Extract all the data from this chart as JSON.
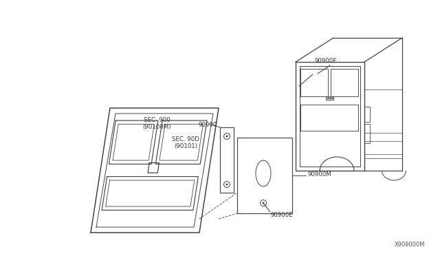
{
  "bg_color": "#ffffff",
  "line_color": "#444444",
  "text_color": "#333333",
  "labels": {
    "sec900_90100m": "SEC. 900\n(90100M)",
    "sec90d_90101": "SEC. 90D\n(90101)",
    "90900e_top": "90900E",
    "90900": "90900",
    "90900m": "90900M",
    "90900e_bot": "90900E",
    "diagram_id": "X909000M"
  }
}
